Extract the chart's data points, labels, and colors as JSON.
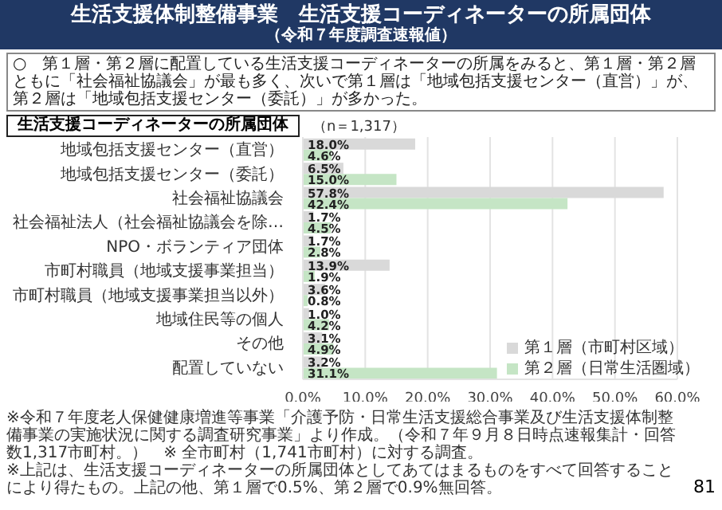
{
  "chart_data": {
    "type": "bar",
    "orientation": "horizontal",
    "title": "生活支援体制整備事業　生活支援コーディネーターの所属団体",
    "subtitle": "（令和７年度調査速報値）",
    "annotations": [
      "○　第１層・第２層に配置している生活支援コーディネーターの所属をみると、第１層・第２層ともに「社会福祉協議会」が最も多く、次いで第１層は「地域包括支援センター（直営）」が、第２層は「地域包括支援センター（委託）」が多かった。",
      "生活支援コーディネーターの所属団体",
      "（n＝1,317）",
      "※令和７年度老人保健健康増進等事業「介護予防・日常生活支援総合事業及び生活支援体制整備事業の実施状況に関する調査研究事業」より作成。（令和７年９月８日時点速報集計・回答数1,317市町村。）　※ 全市町村（1,741市町村）に対する調査。",
      "※上記は、生活支援コーディネーターの所属団体としてあてはまるものをすべて回答することにより得たもの。上記の他、第１層で0.5%、第２層で0.9%無回答。",
      "81"
    ],
    "categories": [
      "地域包括支援センター（直営）",
      "地域包括支援センター（委託）",
      "社会福祉協議会",
      "社会福祉法人（社会福祉協議会を除…",
      "NPO・ボランティア団体",
      "市町村職員（地域支援事業担当）",
      "市町村職員（地域支援事業担当以外）",
      "地域住民等の個人",
      "その他",
      "配置していない"
    ],
    "series": [
      {
        "name": "第１層（市町村区域）",
        "color": "#d9d9d9",
        "values": [
          18.0,
          6.5,
          57.8,
          1.7,
          1.7,
          13.9,
          3.6,
          1.0,
          3.1,
          3.2
        ],
        "value_labels": [
          "18.0%",
          "6.5%",
          "57.8%",
          "1.7%",
          "1.7%",
          "13.9%",
          "3.6%",
          "1.0%",
          "3.1%",
          "3.2%"
        ]
      },
      {
        "name": "第２層（日常生活圏域）",
        "color": "#c5e5c5",
        "values": [
          4.6,
          15.0,
          42.4,
          4.5,
          2.8,
          1.9,
          0.8,
          4.2,
          4.9,
          31.1
        ],
        "value_labels": [
          "4.6%",
          "15.0%",
          "42.4%",
          "4.5%",
          "2.8%",
          "1.9%",
          "0.8%",
          "4.2%",
          "4.9%",
          "31.1%"
        ]
      }
    ],
    "xlim": [
      0,
      60
    ],
    "xticks": [
      {
        "value": 0,
        "label": "0.0%"
      },
      {
        "value": 10,
        "label": "10.0%"
      },
      {
        "value": 20,
        "label": "20.0%"
      },
      {
        "value": 30,
        "label": "30.0%"
      },
      {
        "value": 40,
        "label": "40.0%"
      },
      {
        "value": 50,
        "label": "50.0%"
      },
      {
        "value": 60,
        "label": "60.0%"
      }
    ],
    "grid": "x",
    "legend": "bottom right"
  }
}
